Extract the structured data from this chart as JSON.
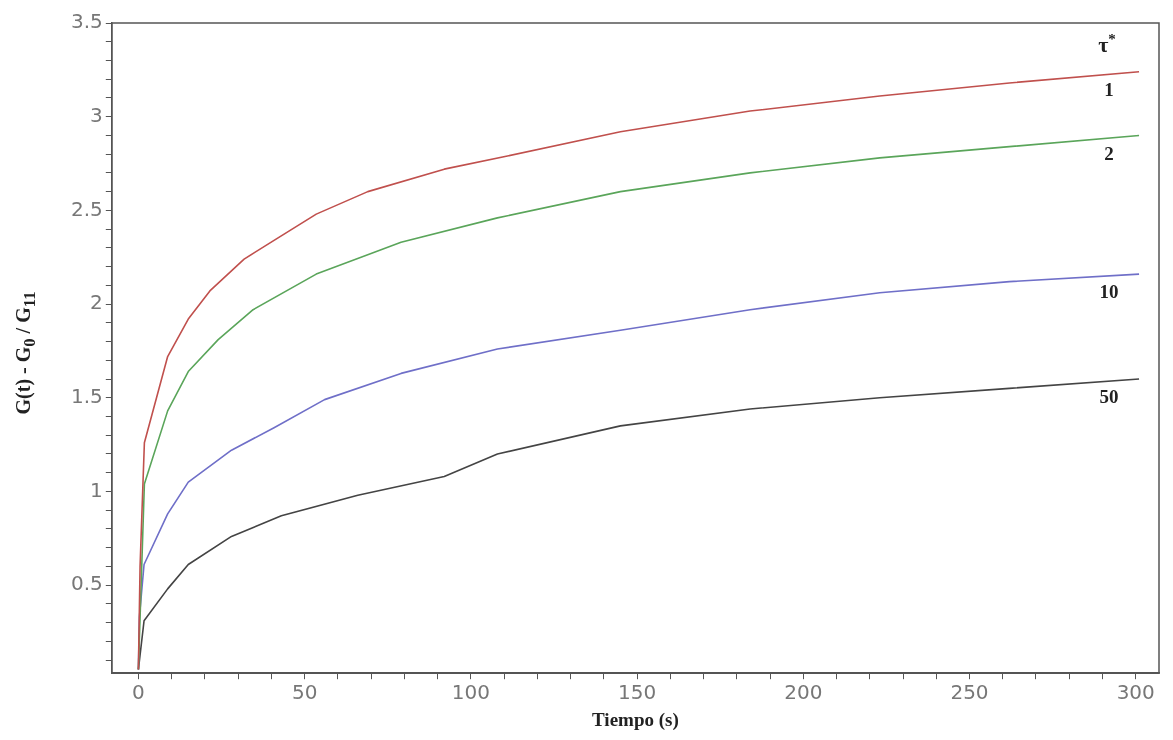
{
  "chart_data": {
    "type": "line",
    "xlabel": "Tiempo (s)",
    "ylabel": "G(t) - G$_{0}$ / G$_{11}$",
    "legend_title": "τ$^{*}$",
    "xlim": [
      -8,
      307
    ],
    "ylim": [
      0.03,
      3.5
    ],
    "xticks": [
      0,
      {
        "value": 10,
        "label": null
      },
      {
        "value": 20,
        "label": null
      },
      {
        "value": 30,
        "label": null
      },
      {
        "value": 40,
        "label": null
      },
      50,
      {
        "value": 60,
        "label": null
      },
      {
        "value": 70,
        "label": null
      },
      {
        "value": 80,
        "label": null
      },
      {
        "value": 90,
        "label": null
      },
      100,
      {
        "value": 110,
        "label": null
      },
      {
        "value": 120,
        "label": null
      },
      {
        "value": 130,
        "label": null
      },
      {
        "value": 140,
        "label": null
      },
      150,
      {
        "value": 160,
        "label": null
      },
      {
        "value": 170,
        "label": null
      },
      {
        "value": 180,
        "label": null
      },
      {
        "value": 190,
        "label": null
      },
      200,
      {
        "value": 210,
        "label": null
      },
      {
        "value": 220,
        "label": null
      },
      {
        "value": 230,
        "label": null
      },
      {
        "value": 240,
        "label": null
      },
      250,
      {
        "value": 260,
        "label": null
      },
      {
        "value": 270,
        "label": null
      },
      {
        "value": 280,
        "label": null
      },
      {
        "value": 290,
        "label": null
      },
      300
    ],
    "yticks": [
      {
        "value": 0.1,
        "label": null
      },
      {
        "value": 0.2,
        "label": null
      },
      {
        "value": 0.3,
        "label": null
      },
      {
        "value": 0.4,
        "label": null
      },
      0.5,
      {
        "value": 0.6,
        "label": null
      },
      {
        "value": 0.7,
        "label": null
      },
      {
        "value": 0.8,
        "label": null
      },
      {
        "value": 0.9,
        "label": null
      },
      1,
      {
        "value": 1.1,
        "label": null
      },
      {
        "value": 1.2,
        "label": null
      },
      {
        "value": 1.3,
        "label": null
      },
      {
        "value": 1.4,
        "label": null
      },
      1.5,
      {
        "value": 1.6,
        "label": null
      },
      {
        "value": 1.7,
        "label": null
      },
      {
        "value": 1.8,
        "label": null
      },
      {
        "value": 1.9,
        "label": null
      },
      2,
      {
        "value": 2.1,
        "label": null
      },
      {
        "value": 2.2,
        "label": null
      },
      {
        "value": 2.3,
        "label": null
      },
      {
        "value": 2.4,
        "label": null
      },
      2.5,
      {
        "value": 2.6,
        "label": null
      },
      {
        "value": 2.7,
        "label": null
      },
      {
        "value": 2.8,
        "label": null
      },
      {
        "value": 2.9,
        "label": null
      },
      3,
      {
        "value": 3.1,
        "label": null
      },
      {
        "value": 3.2,
        "label": null
      },
      {
        "value": 3.3,
        "label": null
      },
      {
        "value": 3.4,
        "label": null
      },
      3.5
    ],
    "grid": false,
    "legend": false,
    "marker": "none",
    "line_style": "solid",
    "series": [
      {
        "name": "1",
        "color": "#c0504d",
        "x": [
          0,
          0.5,
          1.8,
          8.8,
          15,
          21.5,
          31.8,
          40.8,
          53.5,
          69,
          92,
          111,
          145,
          184,
          223,
          262,
          301
        ],
        "values": [
          0.05,
          0.6,
          1.26,
          1.72,
          1.92,
          2.07,
          2.24,
          2.34,
          2.48,
          2.6,
          2.72,
          2.79,
          2.92,
          3.03,
          3.11,
          3.18,
          3.24
        ]
      },
      {
        "name": "2",
        "color": "#5aa55a",
        "x": [
          0,
          0.5,
          1.8,
          8.8,
          15,
          24,
          34.5,
          53.5,
          79,
          108,
          145,
          184,
          223,
          262,
          301
        ],
        "values": [
          0.05,
          null,
          1.04,
          1.43,
          1.64,
          1.81,
          1.97,
          2.16,
          2.33,
          2.46,
          2.6,
          2.7,
          2.78,
          2.84,
          2.9
        ]
      },
      {
        "name": "10",
        "color": "#6f6fc8",
        "x": [
          0,
          0.3,
          1.7,
          8.8,
          15,
          28,
          40.8,
          56,
          79,
          108,
          145,
          184,
          223,
          262,
          301
        ],
        "values": [
          0.05,
          0.33,
          0.61,
          0.88,
          1.05,
          1.22,
          1.34,
          1.49,
          1.63,
          1.76,
          1.86,
          1.97,
          2.06,
          2.12,
          2.16
        ]
      },
      {
        "name": "50",
        "color": "#444444",
        "x": [
          0,
          1.7,
          8.8,
          15,
          28,
          43,
          66,
          92,
          108,
          145,
          184,
          223,
          262,
          301
        ],
        "values": [
          0.05,
          0.31,
          0.48,
          0.61,
          0.76,
          0.87,
          0.98,
          1.08,
          1.2,
          1.35,
          1.44,
          1.5,
          1.55,
          1.6
        ]
      }
    ]
  }
}
